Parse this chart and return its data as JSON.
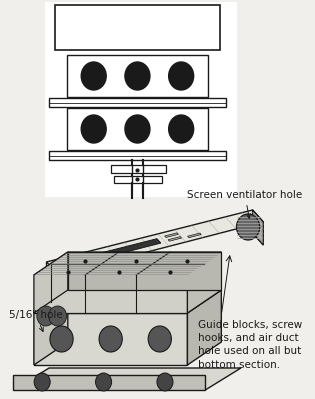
{
  "bg_color": "#f0efeb",
  "line_color": "#1a1a1a",
  "figsize": [
    3.15,
    3.99
  ],
  "dpi": 100,
  "annotations": {
    "screen_vent": "Screen ventilator hole",
    "hole_516": "5/16\" hole",
    "guide": "Guide blocks, screw\nhooks, and air duct\nhole used on all but\nbottom section."
  }
}
